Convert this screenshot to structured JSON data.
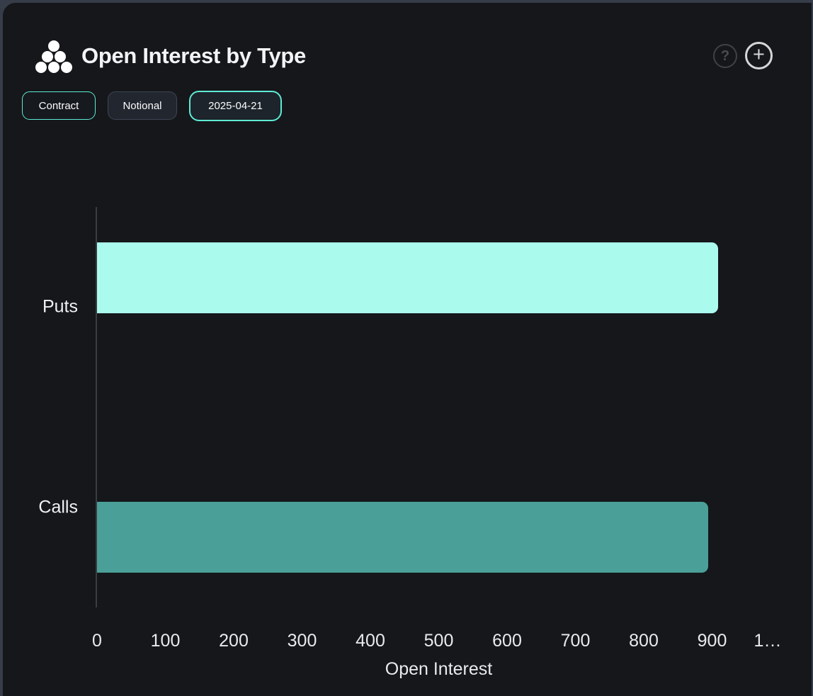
{
  "header": {
    "title": "Open Interest by Type",
    "icon": "cluster-dots-icon",
    "help_glyph": "?",
    "add_glyph": "+"
  },
  "toolbar": {
    "buttons": [
      {
        "label": "Contract",
        "selected": true
      },
      {
        "label": "Notional",
        "selected": false
      },
      {
        "label": "2025-04-21",
        "selected": true
      }
    ]
  },
  "chart_data": {
    "type": "bar",
    "orientation": "horizontal",
    "title": "Open Interest by Type",
    "categories": [
      "Puts",
      "Calls"
    ],
    "values": [
      909,
      894
    ],
    "bar_colors": [
      "#abfaee",
      "#4aa098"
    ],
    "xlabel": "Open Interest",
    "ylabel": "",
    "xlim": [
      0,
      1000
    ],
    "xticks": [
      0,
      100,
      200,
      300,
      400,
      500,
      600,
      700,
      800,
      900,
      1000
    ],
    "xtick_labels": [
      "0",
      "100",
      "200",
      "300",
      "400",
      "500",
      "600",
      "700",
      "800",
      "900",
      "1…"
    ],
    "grid": false,
    "legend": false
  },
  "colors": {
    "accent_teal": "#5eead4",
    "puts_bar": "#abfaee",
    "calls_bar": "#4aa098",
    "card_bg": "#15171a",
    "axis_line": "#3a3d42",
    "text": "#f0f1f3"
  }
}
